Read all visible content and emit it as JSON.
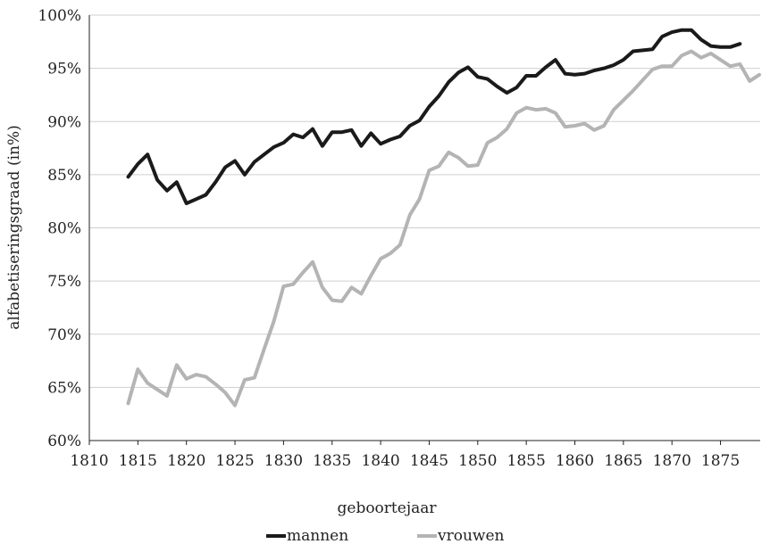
{
  "chart_data": {
    "type": "line",
    "xlabel": "geboortejaar",
    "ylabel": "alfabetiseringsgraad (in%)",
    "xlim": [
      1810,
      1879
    ],
    "ylim": [
      60,
      100
    ],
    "x_ticks": [
      "1810",
      "1815",
      "1820",
      "1825",
      "1830",
      "1835",
      "1840",
      "1845",
      "1850",
      "1855",
      "1860",
      "1865",
      "1870",
      "1875"
    ],
    "y_ticks": [
      "60%",
      "65%",
      "70%",
      "75%",
      "80%",
      "85%",
      "90%",
      "95%",
      "100%"
    ],
    "grid": "horizontal",
    "legend_position": "bottom",
    "series": [
      {
        "name": "mannen",
        "color": "#1a1a1a",
        "x": [
          1814,
          1815,
          1816,
          1817,
          1818,
          1819,
          1820,
          1821,
          1822,
          1823,
          1824,
          1825,
          1826,
          1827,
          1828,
          1829,
          1830,
          1831,
          1832,
          1833,
          1834,
          1835,
          1836,
          1837,
          1838,
          1839,
          1840,
          1841,
          1842,
          1843,
          1844,
          1845,
          1846,
          1847,
          1848,
          1849,
          1850,
          1851,
          1852,
          1853,
          1854,
          1855,
          1856,
          1857,
          1858,
          1859,
          1860,
          1861,
          1862,
          1863,
          1864,
          1865,
          1866,
          1867,
          1868,
          1869,
          1870,
          1871,
          1872,
          1873,
          1874,
          1875,
          1876,
          1877
        ],
        "values": [
          84.8,
          86.0,
          86.9,
          84.5,
          83.5,
          84.3,
          82.3,
          82.7,
          83.1,
          84.3,
          85.7,
          86.3,
          85.0,
          86.2,
          86.9,
          87.6,
          88.0,
          88.8,
          88.5,
          89.3,
          87.7,
          89.0,
          89.0,
          89.2,
          87.7,
          88.9,
          87.9,
          88.3,
          88.6,
          89.6,
          90.1,
          91.4,
          92.4,
          93.7,
          94.6,
          95.1,
          94.2,
          94.0,
          93.3,
          92.7,
          93.2,
          94.3,
          94.3,
          95.1,
          95.8,
          94.5,
          94.4,
          94.5,
          94.8,
          95.0,
          95.3,
          95.8,
          96.6,
          96.7,
          96.8,
          98.0,
          98.4,
          98.6,
          98.6,
          97.7,
          97.1,
          97.0,
          97.0,
          97.3
        ]
      },
      {
        "name": "vrouwen",
        "color": "#b4b4b4",
        "x": [
          1814,
          1815,
          1816,
          1817,
          1818,
          1819,
          1820,
          1821,
          1822,
          1823,
          1824,
          1825,
          1826,
          1827,
          1828,
          1829,
          1830,
          1831,
          1832,
          1833,
          1834,
          1835,
          1836,
          1837,
          1838,
          1839,
          1840,
          1841,
          1842,
          1843,
          1844,
          1845,
          1846,
          1847,
          1848,
          1849,
          1850,
          1851,
          1852,
          1853,
          1854,
          1855,
          1856,
          1857,
          1858,
          1859,
          1860,
          1861,
          1862,
          1863,
          1864,
          1865,
          1866,
          1867,
          1868,
          1869,
          1870,
          1871,
          1872,
          1873,
          1874,
          1875,
          1876,
          1877,
          1878,
          1879
        ],
        "values": [
          63.5,
          66.7,
          65.4,
          64.8,
          64.2,
          67.1,
          65.8,
          66.2,
          66.0,
          65.3,
          64.5,
          63.3,
          65.7,
          65.9,
          68.6,
          71.2,
          74.5,
          74.7,
          75.8,
          76.8,
          74.4,
          73.2,
          73.1,
          74.4,
          73.8,
          75.5,
          77.1,
          77.6,
          78.4,
          81.2,
          82.7,
          85.4,
          85.8,
          87.1,
          86.6,
          85.8,
          85.9,
          88.0,
          88.5,
          89.3,
          90.8,
          91.3,
          91.1,
          91.2,
          90.8,
          89.5,
          89.6,
          89.8,
          89.2,
          89.6,
          91.1,
          92.0,
          92.9,
          93.9,
          94.9,
          95.2,
          95.2,
          96.2,
          96.6,
          96.0,
          96.4,
          95.8,
          95.2,
          95.4,
          93.8,
          94.4
        ]
      }
    ]
  }
}
